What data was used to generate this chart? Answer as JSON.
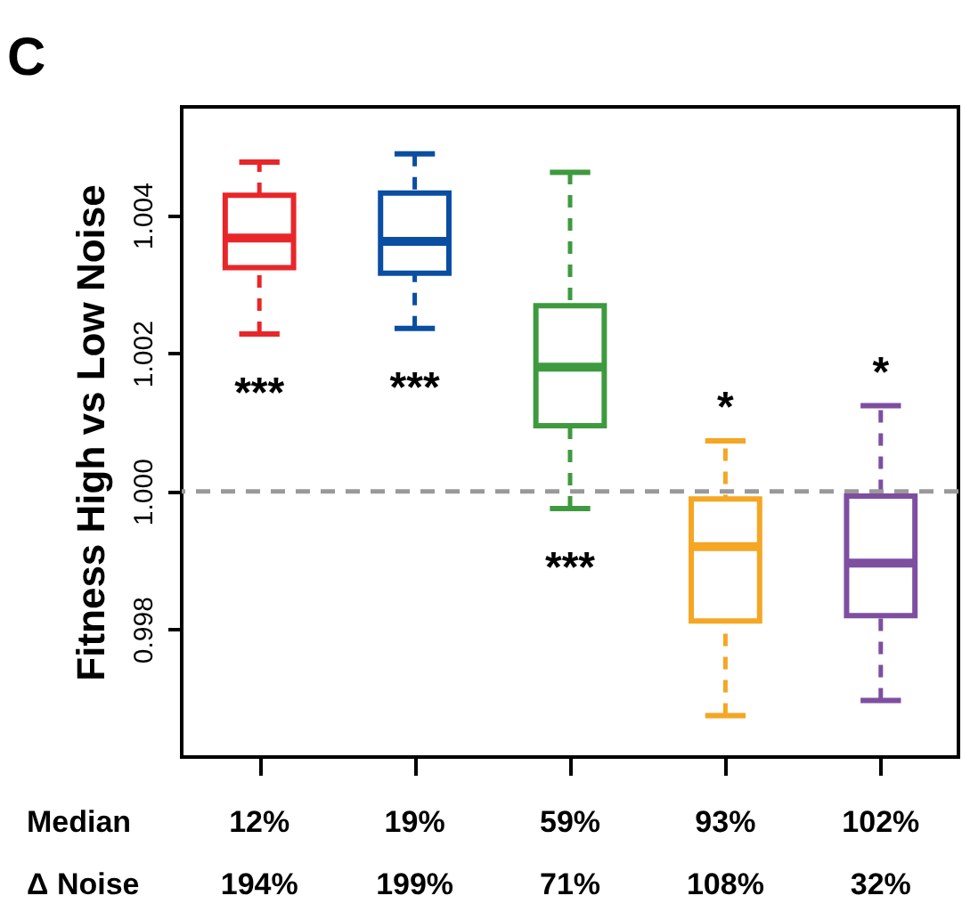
{
  "chart_data": {
    "type": "box",
    "title": "C",
    "ylabel": "Fitness High vs Low Noise",
    "categories": [
      null,
      null,
      null,
      null,
      null
    ],
    "colors": [
      "#e8262a",
      "#0a4ea2",
      "#3e9a3e",
      "#f5a623",
      "#7e4fa0"
    ],
    "boxes": [
      {
        "low": 1.00228,
        "q1": 1.00324,
        "median": 1.00367,
        "q3": 1.00429,
        "high": 1.00477
      },
      {
        "low": 1.00236,
        "q1": 1.00316,
        "median": 1.00362,
        "q3": 1.00432,
        "high": 1.00489
      },
      {
        "low": 0.99975,
        "q1": 1.00095,
        "median": 1.0018,
        "q3": 1.00269,
        "high": 1.00462
      },
      {
        "low": 0.99675,
        "q1": 0.99812,
        "median": 0.9992,
        "q3": 0.99989,
        "high": 1.00073
      },
      {
        "low": 0.99697,
        "q1": 0.9982,
        "median": 0.99896,
        "q3": 0.99993,
        "high": 1.00124
      }
    ],
    "ylim": [
      0.99615,
      1.00557
    ],
    "yticks": [
      {
        "value": 0.998,
        "label": "0.998"
      },
      {
        "value": 1.0,
        "label": "1.000"
      },
      {
        "value": 1.002,
        "label": "1.002"
      },
      {
        "value": 1.004,
        "label": "1.004"
      }
    ],
    "ref_lines": [
      {
        "axis": "y",
        "value": 1.0,
        "color": "#999999",
        "line_style": "dashed"
      }
    ],
    "grid": false,
    "tick_labels": "y",
    "annotations": [
      "***",
      "***",
      "***",
      "*",
      "*",
      "Median",
      "12%",
      "19%",
      "59%",
      "93%",
      "102%",
      "Δ Noise",
      "194%",
      "199%",
      "71%",
      "108%",
      "32%"
    ]
  }
}
